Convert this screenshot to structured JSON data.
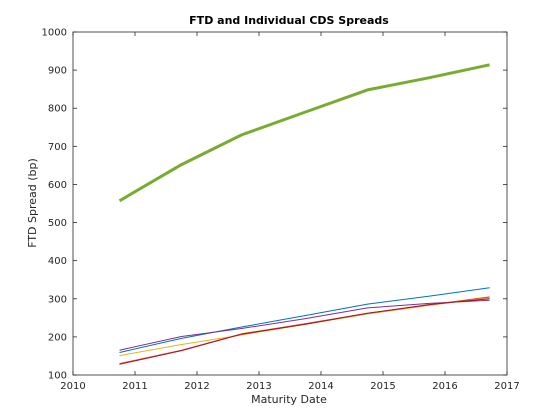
{
  "chart_data": {
    "type": "line",
    "title": "FTD and Individual CDS Spreads",
    "xlabel": "Maturity Date",
    "ylabel": "FTD Spread (bp)",
    "xlim": [
      2010,
      2017
    ],
    "ylim": [
      100,
      1000
    ],
    "xticks": [
      "2010",
      "2011",
      "2012",
      "2013",
      "2014",
      "2015",
      "2016",
      "2017"
    ],
    "yticks": [
      "100",
      "200",
      "300",
      "400",
      "500",
      "600",
      "700",
      "800",
      "900",
      "1000"
    ],
    "grid": false,
    "legend": "none",
    "series": [
      {
        "color": "#77ac30",
        "emphasis": "thick",
        "x": [
          2010.75,
          2011.75,
          2012.72,
          2013.75,
          2014.75,
          2015.75,
          2016.72
        ],
        "y": [
          557,
          652,
          730,
          790,
          848,
          880,
          914
        ]
      },
      {
        "color": "#0072bd",
        "x": [
          2010.75,
          2011.75,
          2012.72,
          2013.75,
          2014.75,
          2015.75,
          2016.72
        ],
        "y": [
          159,
          196,
          226,
          256,
          286,
          307,
          329
        ]
      },
      {
        "color": "#7e2f8e",
        "x": [
          2010.75,
          2011.75,
          2012.72,
          2013.75,
          2014.75,
          2015.75,
          2016.72
        ],
        "y": [
          165,
          201,
          222,
          248,
          276,
          288,
          296
        ]
      },
      {
        "color": "#edb120",
        "x": [
          2010.75,
          2011.75,
          2012.72,
          2013.75,
          2014.75,
          2015.75,
          2016.72
        ],
        "y": [
          151,
          180,
          205,
          233,
          260,
          283,
          303
        ]
      },
      {
        "color": "#d95319",
        "x": [
          2010.75,
          2011.75,
          2012.72,
          2013.75,
          2014.75,
          2015.75,
          2016.72
        ],
        "y": [
          130,
          165,
          208,
          235,
          262,
          284,
          305
        ]
      },
      {
        "color": "#a2142f",
        "x": [
          2010.75,
          2011.75,
          2012.72,
          2013.75,
          2014.75,
          2015.75,
          2016.72
        ],
        "y": [
          128,
          164,
          207,
          233,
          262,
          285,
          300
        ]
      }
    ]
  }
}
